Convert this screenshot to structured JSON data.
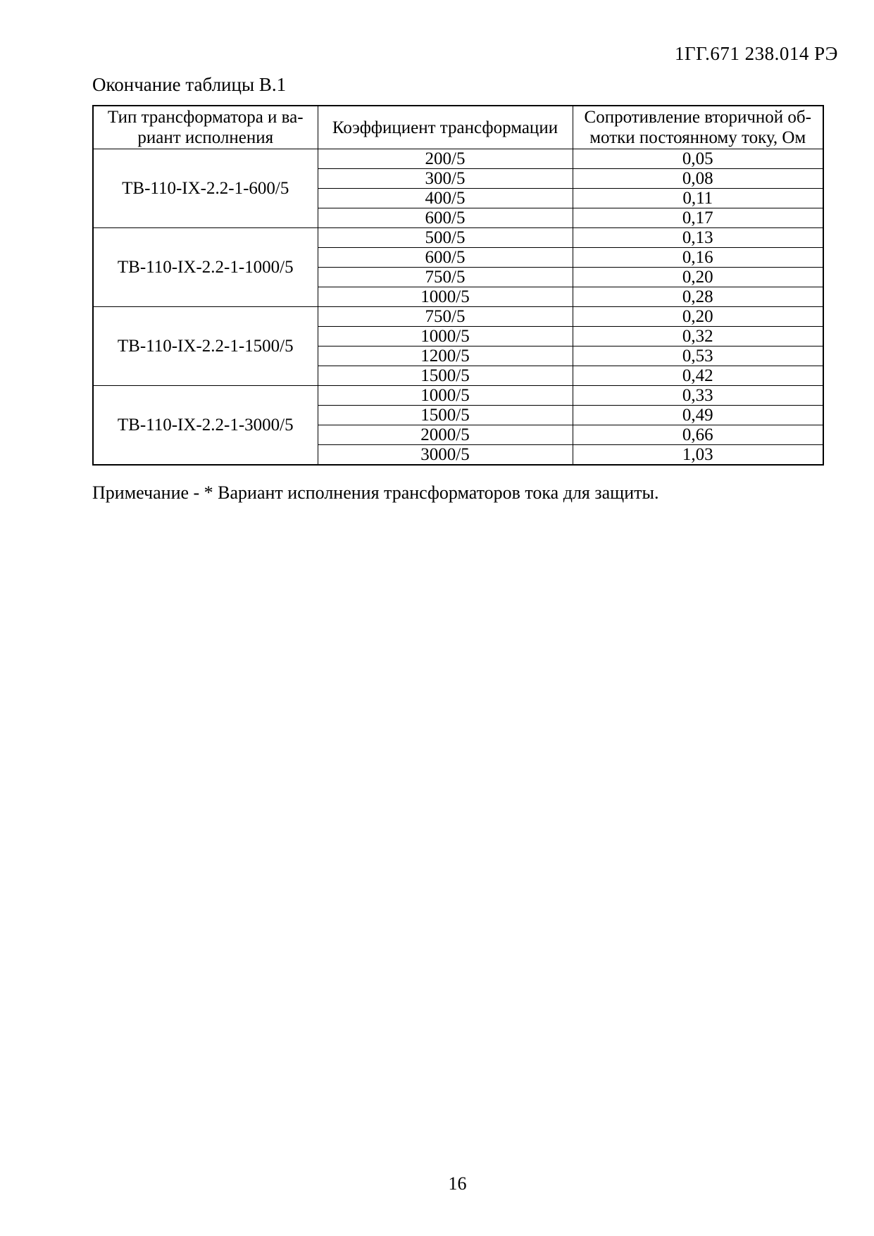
{
  "page": {
    "doc_number": "1ГГ.671 238.014 РЭ",
    "table_caption": "Окончание таблицы В.1",
    "note": "Примечание - * Вариант исполнения трансформаторов тока для защиты.",
    "page_number": "16"
  },
  "table": {
    "headers": [
      "Тип трансформатора и ва-\nриант исполнения",
      "Коэффициент трансформации",
      "Сопротивление вторичной об-\nмотки постоянному току, Ом"
    ],
    "groups": [
      {
        "type": "ТВ-110-IX-2.2-1-600/5",
        "rows": [
          {
            "ratio": "200/5",
            "resistance": "0,05"
          },
          {
            "ratio": "300/5",
            "resistance": "0,08"
          },
          {
            "ratio": "400/5",
            "resistance": "0,11"
          },
          {
            "ratio": "600/5",
            "resistance": "0,17"
          }
        ]
      },
      {
        "type": "ТВ-110-IX-2.2-1-1000/5",
        "rows": [
          {
            "ratio": "500/5",
            "resistance": "0,13"
          },
          {
            "ratio": "600/5",
            "resistance": "0,16"
          },
          {
            "ratio": "750/5",
            "resistance": "0,20"
          },
          {
            "ratio": "1000/5",
            "resistance": "0,28"
          }
        ]
      },
      {
        "type": "ТВ-110-IX-2.2-1-1500/5",
        "rows": [
          {
            "ratio": "750/5",
            "resistance": "0,20"
          },
          {
            "ratio": "1000/5",
            "resistance": "0,32"
          },
          {
            "ratio": "1200/5",
            "resistance": "0,53"
          },
          {
            "ratio": "1500/5",
            "resistance": "0,42"
          }
        ]
      },
      {
        "type": "ТВ-110-IX-2.2-1-3000/5",
        "rows": [
          {
            "ratio": "1000/5",
            "resistance": "0,33"
          },
          {
            "ratio": "1500/5",
            "resistance": "0,49"
          },
          {
            "ratio": "2000/5",
            "resistance": "0,66"
          },
          {
            "ratio": "3000/5",
            "resistance": "1,03"
          }
        ]
      }
    ]
  }
}
